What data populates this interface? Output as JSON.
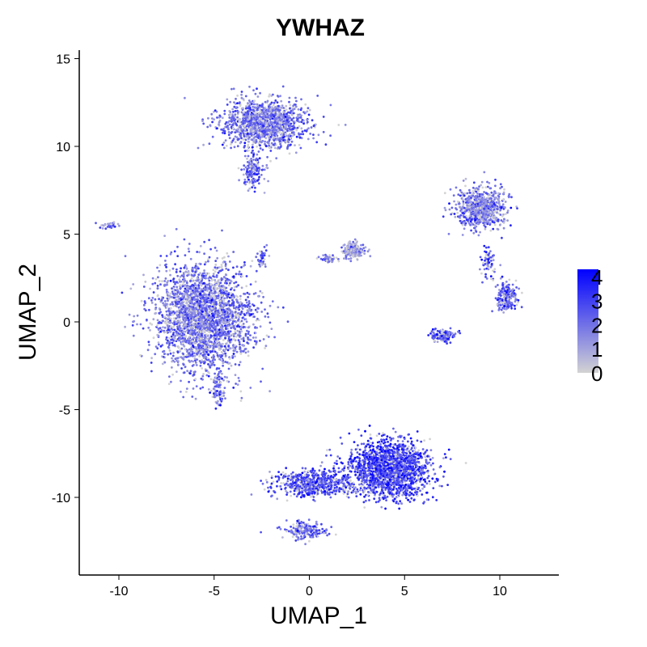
{
  "chart_data": {
    "type": "scatter",
    "title": "YWHAZ",
    "xlabel": "UMAP_1",
    "ylabel": "UMAP_2",
    "xlim": [
      -12,
      13
    ],
    "ylim": [
      -14.5,
      15.5
    ],
    "x_ticks": [
      -10,
      -5,
      0,
      5,
      10
    ],
    "x_tick_labels": [
      "-10",
      "-5",
      "0",
      "5",
      "10"
    ],
    "y_ticks": [
      -10,
      -5,
      0,
      5,
      10,
      15
    ],
    "y_tick_labels": [
      "-10",
      "-5",
      "0",
      "5",
      "10",
      "15"
    ],
    "grid": false,
    "color_scale": {
      "low": "#d3d3d3",
      "high": "#0000ff",
      "min": 0,
      "max": 4.3,
      "legend_labels": [
        "0",
        "1",
        "2",
        "3",
        "4"
      ],
      "legend_values": [
        0,
        1,
        2,
        3,
        4
      ],
      "legend_position": "right"
    },
    "clusters": [
      {
        "name": "top",
        "center": [
          -2.3,
          11.3
        ],
        "spread": [
          2.0,
          1.2
        ],
        "points": 1300,
        "mean_expr": 2.0
      },
      {
        "name": "top-stem",
        "center": [
          -3.0,
          8.6
        ],
        "spread": [
          0.6,
          0.8
        ],
        "points": 150,
        "mean_expr": 2.2
      },
      {
        "name": "left-large",
        "center": [
          -5.5,
          0.3
        ],
        "spread": [
          2.3,
          2.7
        ],
        "points": 2600,
        "mean_expr": 1.9
      },
      {
        "name": "left-streak",
        "center": [
          -4.8,
          -3.8
        ],
        "spread": [
          0.35,
          0.9
        ],
        "points": 80,
        "mean_expr": 2.1
      },
      {
        "name": "left-pin",
        "center": [
          -2.5,
          3.6
        ],
        "spread": [
          0.2,
          0.5
        ],
        "points": 40,
        "mean_expr": 2.3
      },
      {
        "name": "far-left-line",
        "center": [
          -10.5,
          5.5
        ],
        "spread": [
          0.6,
          0.2
        ],
        "points": 30,
        "mean_expr": 2.0
      },
      {
        "name": "center-small",
        "center": [
          2.3,
          4.1
        ],
        "spread": [
          0.5,
          0.4
        ],
        "points": 220,
        "mean_expr": 1.2
      },
      {
        "name": "center-tail",
        "center": [
          1.0,
          3.6
        ],
        "spread": [
          0.5,
          0.2
        ],
        "points": 50,
        "mean_expr": 2.0
      },
      {
        "name": "bottom-main",
        "center": [
          4.2,
          -8.4
        ],
        "spread": [
          1.9,
          1.4
        ],
        "points": 1900,
        "mean_expr": 2.9
      },
      {
        "name": "bottom-tail",
        "center": [
          0.2,
          -9.2
        ],
        "spread": [
          1.9,
          0.7
        ],
        "points": 600,
        "mean_expr": 2.7
      },
      {
        "name": "bottom-stem",
        "center": [
          -0.3,
          -11.9
        ],
        "spread": [
          1.1,
          0.45
        ],
        "points": 180,
        "mean_expr": 2.0
      },
      {
        "name": "right-top",
        "center": [
          9.0,
          6.5
        ],
        "spread": [
          1.2,
          1.1
        ],
        "points": 750,
        "mean_expr": 1.8
      },
      {
        "name": "right-mid",
        "center": [
          10.4,
          1.4
        ],
        "spread": [
          0.5,
          0.7
        ],
        "points": 200,
        "mean_expr": 2.2
      },
      {
        "name": "right-bottom",
        "center": [
          7.0,
          -0.8
        ],
        "spread": [
          0.6,
          0.3
        ],
        "points": 130,
        "mean_expr": 2.5
      },
      {
        "name": "right-thread",
        "center": [
          9.4,
          3.4
        ],
        "spread": [
          0.4,
          0.9
        ],
        "points": 60,
        "mean_expr": 2.3
      }
    ]
  }
}
